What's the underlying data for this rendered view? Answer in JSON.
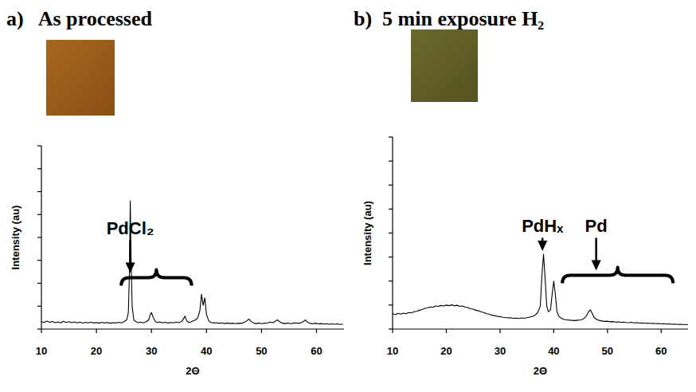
{
  "chart_data": [
    {
      "type": "line",
      "title": "a)   As processed",
      "x_label": "2Θ",
      "y_label": "Intensity (au)",
      "color": "#000000",
      "xlim": [
        10,
        65
      ],
      "xticks": [
        10,
        20,
        30,
        40,
        50,
        60
      ],
      "ylim": [
        0,
        100
      ],
      "yticks": [
        0,
        12.5,
        25,
        37.5,
        50,
        62.5,
        75,
        87.5,
        100
      ],
      "tick_labels": "x",
      "grid": false,
      "x": [
        10,
        10.5,
        11,
        11.5,
        12,
        12.5,
        13,
        13.5,
        14,
        14.5,
        15,
        15.5,
        16,
        16.5,
        17,
        17.5,
        18,
        18.5,
        19,
        19.5,
        20,
        20.5,
        21,
        21.5,
        22,
        22.5,
        23,
        23.5,
        24,
        24.5,
        25,
        25.5,
        25.8,
        26,
        26.15,
        26.3,
        26.5,
        26.8,
        27.2,
        27.6,
        28,
        28.5,
        29,
        29.5,
        29.8,
        30,
        30.3,
        30.7,
        31,
        31.5,
        32,
        32.5,
        33,
        33.5,
        34,
        34.5,
        35,
        35.5,
        35.8,
        36.1,
        36.4,
        36.8,
        37.2,
        37.6,
        38,
        38.4,
        38.8,
        39.1,
        39.4,
        39.7,
        40,
        40.4,
        40.8,
        41.3,
        41.8,
        42.3,
        42.8,
        43.3,
        43.8,
        44.3,
        44.8,
        45.3,
        45.8,
        46.3,
        46.8,
        47.3,
        47.7,
        48.1,
        48.6,
        49.1,
        49.6,
        50.1,
        50.6,
        51.1,
        51.6,
        52.1,
        52.5,
        52.9,
        53.3,
        53.8,
        54.3,
        54.8,
        55.3,
        55.8,
        56.3,
        56.8,
        57.3,
        57.7,
        58,
        58.3,
        58.8,
        59.3,
        59.8,
        60.3,
        60.8,
        61.3,
        61.8,
        62.3,
        62.8,
        63.3,
        63.8,
        64.3,
        64.8
      ],
      "values": [
        4,
        3.6,
        4.3,
        3.7,
        4.1,
        3.5,
        3.9,
        3.4,
        4.2,
        3.6,
        4,
        3.5,
        3.9,
        3.4,
        3.8,
        3.3,
        3.7,
        3.4,
        3.8,
        3.3,
        3.6,
        3.2,
        3.7,
        3.3,
        3.6,
        3.2,
        3.5,
        3.3,
        3.7,
        3.4,
        4,
        5,
        9,
        30,
        70,
        38,
        12,
        5,
        4,
        3.5,
        3.8,
        3.4,
        3.9,
        5,
        8,
        9,
        6.5,
        4.2,
        3.6,
        3.9,
        3.4,
        3.7,
        3.3,
        3.6,
        3.4,
        3.8,
        3.5,
        4.2,
        5.5,
        7,
        4.5,
        3.6,
        3.9,
        4.5,
        5,
        6,
        10,
        19,
        13,
        17,
        8,
        4.5,
        3.6,
        3.3,
        3.5,
        3.1,
        3.4,
        3,
        3.3,
        3,
        3.2,
        2.9,
        3.2,
        3.1,
        3.6,
        4.4,
        5.5,
        4.2,
        3.2,
        3,
        3.3,
        2.9,
        3.2,
        3.4,
        3.8,
        3.5,
        4.2,
        5,
        4,
        3.2,
        3,
        3.3,
        2.9,
        3.2,
        3.4,
        3.1,
        3.6,
        4.2,
        5,
        3.9,
        3.1,
        2.9,
        3.2,
        2.8,
        3,
        2.7,
        2.9,
        2.6,
        2.8,
        2.6,
        2.8,
        2.5,
        2.7
      ],
      "annotations": [
        {
          "text": "PdCl₂",
          "x": 26.15,
          "range": [
            24.5,
            37.3
          ]
        }
      ]
    },
    {
      "type": "line",
      "title": "b)  5 min exposure H₂",
      "x_label": "2Θ",
      "y_label": "Intensity (au)",
      "color": "#000000",
      "xlim": [
        10,
        65
      ],
      "xticks": [
        10,
        20,
        30,
        40,
        50,
        60
      ],
      "ylim": [
        0,
        100
      ],
      "yticks": [
        0,
        12.5,
        25,
        37.5,
        50,
        62.5,
        75,
        87.5,
        100
      ],
      "tick_labels": "x",
      "grid": false,
      "x": [
        10,
        10.5,
        11,
        11.5,
        12,
        12.5,
        13,
        13.5,
        14,
        14.5,
        15,
        15.5,
        16,
        16.5,
        17,
        17.5,
        18,
        18.5,
        19,
        19.5,
        20,
        20.5,
        21,
        21.5,
        22,
        22.5,
        23,
        23.5,
        24,
        24.5,
        25,
        25.5,
        26,
        26.5,
        27,
        27.5,
        28,
        28.5,
        29,
        29.5,
        30,
        30.5,
        31,
        31.5,
        32,
        32.5,
        33,
        33.5,
        34,
        34.5,
        35,
        35.5,
        36,
        36.5,
        37,
        37.5,
        37.8,
        38.1,
        38.4,
        38.7,
        39,
        39.4,
        39.7,
        40,
        40.3,
        40.6,
        41,
        41.5,
        42,
        42.5,
        43,
        43.5,
        44,
        44.5,
        45,
        45.5,
        46,
        46.5,
        46.8,
        47.1,
        47.5,
        48,
        48.5,
        49,
        49.5,
        50,
        50.5,
        51,
        51.5,
        52,
        52.5,
        53,
        53.5,
        54,
        54.5,
        55,
        55.5,
        56,
        56.5,
        57,
        57.5,
        58,
        58.5,
        59,
        59.5,
        60,
        60.5,
        61,
        61.5,
        62,
        62.5,
        63,
        63.5,
        64,
        64.5,
        65
      ],
      "values": [
        8,
        7.5,
        8.2,
        7.8,
        8.3,
        8,
        8.6,
        8.4,
        9,
        9.2,
        9.8,
        10.2,
        10.8,
        11,
        11.5,
        11.3,
        12,
        11.8,
        12.3,
        12,
        12.5,
        12.2,
        12.6,
        12.1,
        12.4,
        11.8,
        12,
        11.4,
        11.2,
        10.6,
        10.4,
        9.8,
        9.5,
        8.9,
        8.6,
        8,
        7.8,
        7.2,
        7,
        6.6,
        6.5,
        6.1,
        6,
        5.8,
        5.9,
        5.6,
        5.7,
        5.5,
        5.8,
        5.6,
        5.9,
        6.2,
        6.5,
        7.2,
        8.5,
        12,
        28,
        39,
        26,
        12,
        9,
        10,
        18,
        25,
        18,
        9,
        6.5,
        5.5,
        5,
        4.8,
        4.6,
        4.5,
        4.4,
        4.6,
        4.8,
        5.2,
        6.5,
        9,
        10,
        8.5,
        6,
        5,
        4.5,
        4.2,
        4,
        4.1,
        3.8,
        3.9,
        3.6,
        3.7,
        3.5,
        3.6,
        3.4,
        3.3,
        3.5,
        3.2,
        3.3,
        3.1,
        3.2,
        3,
        3.1,
        2.9,
        3,
        2.8,
        2.9,
        2.7,
        2.8,
        2.6,
        2.7,
        2.5,
        2.6,
        2.4,
        2.5,
        2.4,
        2.3,
        2.4
      ],
      "annotations": [
        {
          "text": "PdHₓ",
          "x": 37.9
        },
        {
          "text": "Pd",
          "x": 47.9,
          "range": [
            41.6,
            62.2
          ]
        }
      ]
    }
  ]
}
